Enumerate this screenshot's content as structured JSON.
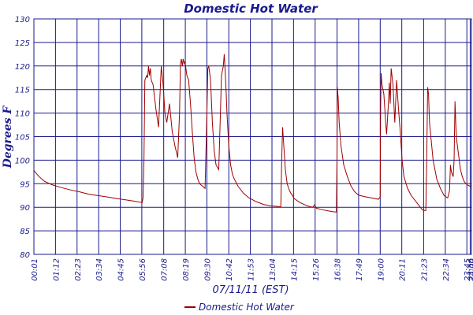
{
  "chart_data": {
    "type": "line",
    "title": "Domestic Hot Water",
    "xlabel": "07/11/11 (EST)",
    "ylabel": "Degrees F",
    "ylim": [
      80,
      130
    ],
    "yticks": [
      80,
      85,
      90,
      95,
      100,
      105,
      110,
      115,
      120,
      125,
      130
    ],
    "xlim_hours": [
      0.0167,
      24.0
    ],
    "xtick_labels": [
      "00:01",
      "01:12",
      "02:23",
      "03:34",
      "04:45",
      "05:56",
      "07:08",
      "08:19",
      "09:30",
      "10:42",
      "11:53",
      "13:04",
      "14:15",
      "15:26",
      "16:38",
      "17:49",
      "19:00",
      "20:11",
      "21:23",
      "22:34",
      "23:45",
      "23:56",
      "24:00"
    ],
    "xtick_hours": [
      0.0167,
      1.2,
      2.383,
      3.567,
      4.75,
      5.933,
      7.133,
      8.317,
      9.5,
      10.7,
      11.883,
      13.067,
      14.25,
      15.433,
      16.633,
      17.817,
      19.0,
      20.183,
      21.383,
      22.567,
      23.75,
      23.933,
      24.0
    ],
    "grid": true,
    "legend": {
      "position": "bottom-center",
      "entries": [
        "Domestic Hot Water"
      ]
    },
    "series": [
      {
        "name": "Domestic Hot Water",
        "color": "#a00000",
        "x": [
          0.02,
          0.3,
          0.6,
          1.0,
          1.5,
          2.0,
          2.5,
          3.0,
          3.5,
          4.0,
          4.5,
          5.0,
          5.5,
          5.95,
          6.0,
          6.05,
          6.1,
          6.2,
          6.25,
          6.3,
          6.35,
          6.4,
          6.45,
          6.55,
          6.7,
          6.85,
          7.0,
          7.1,
          7.2,
          7.3,
          7.45,
          7.6,
          7.75,
          7.9,
          8.0,
          8.05,
          8.1,
          8.15,
          8.2,
          8.25,
          8.3,
          8.35,
          8.4,
          8.5,
          8.6,
          8.7,
          8.8,
          8.9,
          9.0,
          9.1,
          9.25,
          9.4,
          9.5,
          9.55,
          9.6,
          9.7,
          9.8,
          9.9,
          10.0,
          10.15,
          10.3,
          10.4,
          10.45,
          10.5,
          10.55,
          10.6,
          10.7,
          10.8,
          10.9,
          11.0,
          11.2,
          11.5,
          11.8,
          12.2,
          12.6,
          13.0,
          13.3,
          13.55,
          13.6,
          13.65,
          13.7,
          13.8,
          13.9,
          14.0,
          14.1,
          14.3,
          14.6,
          15.0,
          15.3,
          15.4,
          15.5,
          15.8,
          16.2,
          16.5,
          16.6,
          16.63,
          16.65,
          16.7,
          16.75,
          16.85,
          17.0,
          17.2,
          17.4,
          17.6,
          17.8,
          18.1,
          18.5,
          18.9,
          19.0,
          19.02,
          19.05,
          19.1,
          19.2,
          19.3,
          19.35,
          19.45,
          19.5,
          19.55,
          19.6,
          19.7,
          19.8,
          19.9,
          20.0,
          20.1,
          20.2,
          20.3,
          20.5,
          20.7,
          20.9,
          21.1,
          21.3,
          21.45,
          21.5,
          21.55,
          21.6,
          21.65,
          21.7,
          21.8,
          21.9,
          22.1,
          22.3,
          22.5,
          22.7,
          22.8,
          22.85,
          22.9,
          23.0,
          23.05,
          23.1,
          23.15,
          23.2,
          23.3,
          23.4,
          23.5,
          23.6,
          23.7,
          23.8,
          23.9,
          24.0
        ],
        "y": [
          97.8,
          96.5,
          95.5,
          94.8,
          94.2,
          93.7,
          93.3,
          92.8,
          92.5,
          92.2,
          91.9,
          91.6,
          91.3,
          91.0,
          92.0,
          100.0,
          117.0,
          118.0,
          117.5,
          120.0,
          118.0,
          119.5,
          117.0,
          116.0,
          111.0,
          107.0,
          120.0,
          116.0,
          110.0,
          108.0,
          112.0,
          106.0,
          103.0,
          100.5,
          110.0,
          120.5,
          121.5,
          120.0,
          121.5,
          120.5,
          121.0,
          119.5,
          118.0,
          117.0,
          112.0,
          106.0,
          100.5,
          97.5,
          96.0,
          95.0,
          94.5,
          94.0,
          110.0,
          119.5,
          120.0,
          117.0,
          108.0,
          102.0,
          99.0,
          98.0,
          118.0,
          120.0,
          122.5,
          119.0,
          115.0,
          110.0,
          103.0,
          99.0,
          97.0,
          96.0,
          94.5,
          93.0,
          92.0,
          91.2,
          90.6,
          90.3,
          90.2,
          90.1,
          100.0,
          107.0,
          104.0,
          98.0,
          95.0,
          93.8,
          93.0,
          91.8,
          91.0,
          90.3,
          90.0,
          90.5,
          89.8,
          89.5,
          89.2,
          89.0,
          89.0,
          100.0,
          115.5,
          113.0,
          108.0,
          103.0,
          99.0,
          96.5,
          94.5,
          93.3,
          92.6,
          92.3,
          92.0,
          91.7,
          92.2,
          110.0,
          118.5,
          116.0,
          114.0,
          108.0,
          105.5,
          112.0,
          116.5,
          112.0,
          119.5,
          116.0,
          108.0,
          117.0,
          111.0,
          106.0,
          100.0,
          96.5,
          94.0,
          92.5,
          91.5,
          90.5,
          89.5,
          89.3,
          89.3,
          100.0,
          115.5,
          114.0,
          108.0,
          104.0,
          100.0,
          96.0,
          94.0,
          92.5,
          92.0,
          93.5,
          99.0,
          97.5,
          96.5,
          100.0,
          112.5,
          107.0,
          104.0,
          101.0,
          98.0,
          96.5,
          95.5,
          95.0,
          94.7,
          94.5,
          94.5
        ]
      }
    ]
  }
}
